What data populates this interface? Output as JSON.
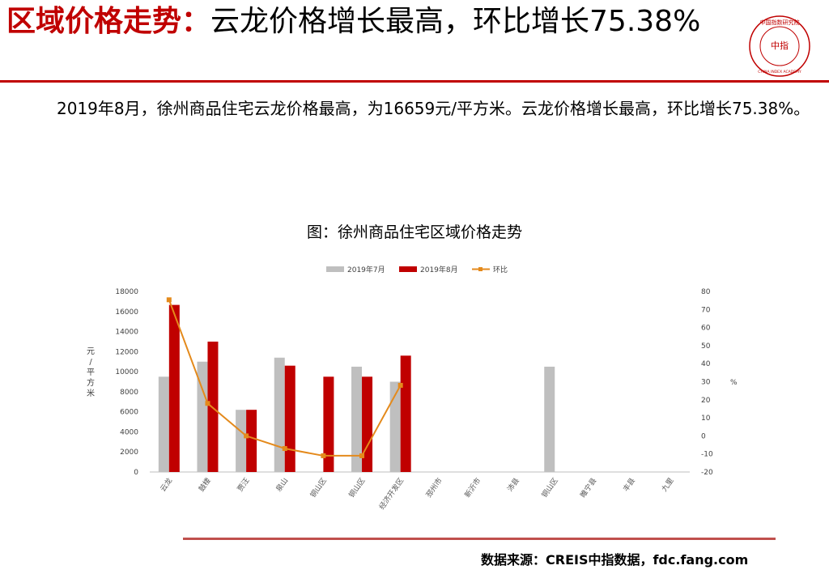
{
  "header": {
    "title_highlight": "区域价格走势：",
    "title_rest": "云龙价格增长最高，环比增长75.38%"
  },
  "logo": {
    "top_text": "中国指数研究院",
    "center_text": "中指",
    "bottom_text": "CHINA INDEX ACADEMY",
    "color": "#c00000"
  },
  "body_text": "2019年8月，徐州商品住宅云龙价格最高，为16659元/平方米。云龙价格增长最高，环比增长75.38%。",
  "chart_title": "图：徐州商品住宅区域价格走势",
  "source": "数据来源：CREIS中指数据，fdc.fang.com",
  "chart_data": {
    "type": "bar",
    "categories": [
      "云龙",
      "鼓楼",
      "贾汪",
      "泉山",
      "铜山区",
      "铜山区",
      "经济开发区",
      "邳州市",
      "新沂市",
      "沛县",
      "铜山区",
      "睢宁县",
      "丰县",
      "九里"
    ],
    "series": [
      {
        "name": "2019年7月",
        "type": "bar",
        "color": "#bfbfbf",
        "axis": "left",
        "values": [
          9500,
          11000,
          6200,
          11400,
          null,
          10500,
          9000,
          null,
          null,
          null,
          10500,
          null,
          null,
          null
        ]
      },
      {
        "name": "2019年8月",
        "type": "bar",
        "color": "#c00000",
        "axis": "left",
        "values": [
          16659,
          13000,
          6200,
          10600,
          9500,
          9500,
          11600,
          null,
          null,
          null,
          null,
          null,
          null,
          null
        ]
      },
      {
        "name": "环比",
        "type": "line",
        "color": "#e48a1c",
        "axis": "right",
        "values": [
          75.38,
          18,
          0,
          -7,
          -11,
          -11,
          28,
          null,
          null,
          null,
          null,
          null,
          null,
          null
        ]
      }
    ],
    "ylabel": "元/平方米",
    "y2label": "%",
    "ylim": [
      0,
      18000
    ],
    "yticks": [
      0,
      2000,
      4000,
      6000,
      8000,
      10000,
      12000,
      14000,
      16000,
      18000
    ],
    "y2lim": [
      -20,
      80
    ],
    "y2ticks": [
      -20,
      -10,
      0,
      10,
      20,
      30,
      40,
      50,
      60,
      70,
      80
    ],
    "legend": "top"
  }
}
